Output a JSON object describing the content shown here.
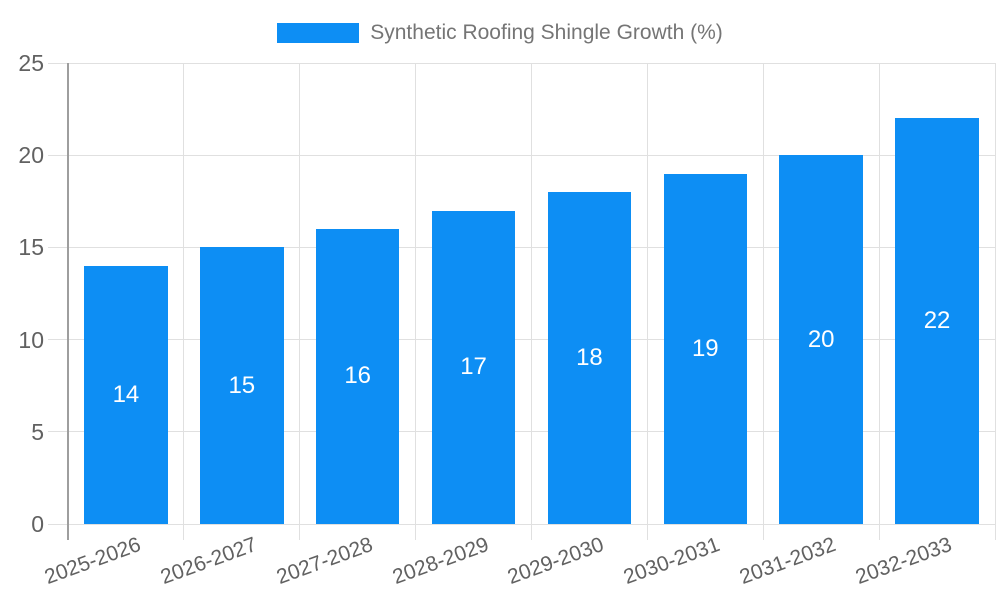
{
  "chart_data": {
    "type": "bar",
    "title": "Synthetic Roofing Shingle Growth (%)",
    "legend_entries": [
      "Synthetic Roofing Shingle Growth (%)"
    ],
    "legend_position": "top-center",
    "categories": [
      "2025-2026",
      "2026-2027",
      "2027-2028",
      "2028-2029",
      "2029-2030",
      "2030-2031",
      "2031-2032",
      "2032-2033"
    ],
    "values": [
      14,
      15,
      16,
      17,
      18,
      19,
      20,
      22
    ],
    "xlabel": "",
    "ylabel": "",
    "ylim": [
      0,
      25
    ],
    "yticks": [
      0,
      5,
      10,
      15,
      20,
      25
    ],
    "grid": true,
    "x_tick_label_rotation_deg": -20,
    "colors": {
      "bar": "#0d8ef4",
      "grid": "#e0e0e0",
      "axis": "#9e9e9e",
      "tick_label": "#616161",
      "legend_text": "#757575",
      "bar_label": "#ffffff",
      "background": "#ffffff"
    }
  }
}
